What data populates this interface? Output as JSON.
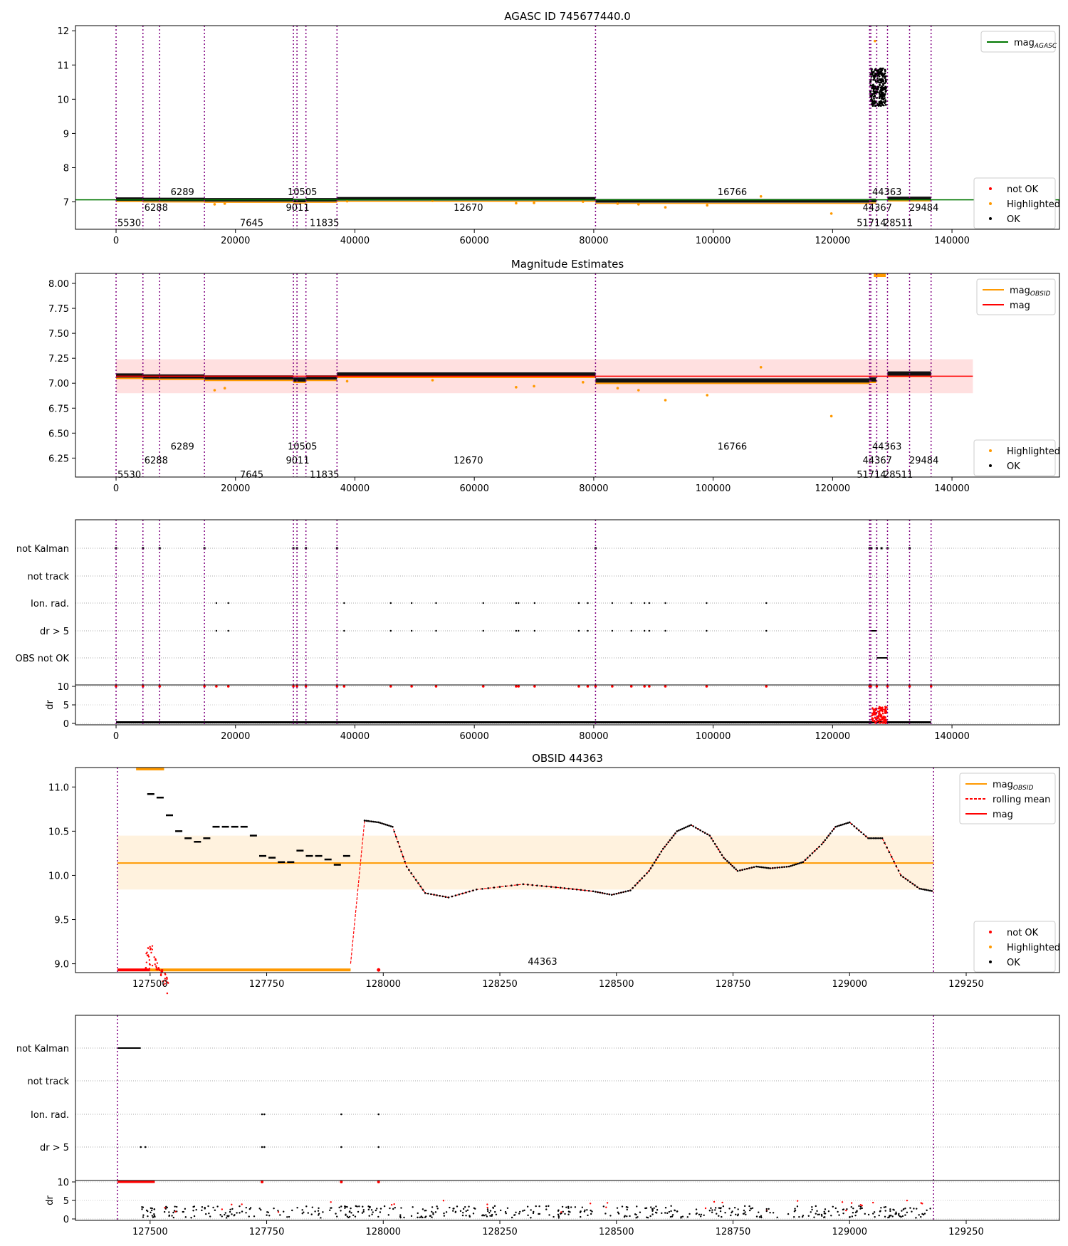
{
  "chart_data": [
    {
      "type": "scatter",
      "title": "AGASC ID 745677440.0",
      "xlim": [
        -6800,
        158000
      ],
      "ylim": [
        6.2,
        12.15
      ],
      "xticks": [
        0,
        20000,
        40000,
        60000,
        80000,
        100000,
        120000,
        140000
      ],
      "yticks": [
        7,
        8,
        9,
        10,
        11,
        12
      ],
      "obs_boundaries": [
        0,
        4500,
        7300,
        14800,
        29700,
        30300,
        31800,
        37000,
        80300,
        126200,
        126400,
        127400,
        129200,
        132900,
        136500
      ],
      "obs_labels": [
        {
          "text": "5530",
          "x": 0,
          "y": 6.4
        },
        {
          "text": "6288",
          "x": 4500,
          "y": 6.85
        },
        {
          "text": "6289",
          "x": 8900,
          "y": 7.3
        },
        {
          "text": "7645",
          "x": 20500,
          "y": 6.4
        },
        {
          "text": "10505",
          "x": 28500,
          "y": 7.3
        },
        {
          "text": "9011",
          "x": 28200,
          "y": 6.85
        },
        {
          "text": "11835",
          "x": 32200,
          "y": 6.4
        },
        {
          "text": "12670",
          "x": 56300,
          "y": 6.85
        },
        {
          "text": "16766",
          "x": 100500,
          "y": 7.3
        },
        {
          "text": "44363",
          "x": 126400,
          "y": 7.3
        },
        {
          "text": "44367",
          "x": 124800,
          "y": 6.85
        },
        {
          "text": "51714",
          "x": 123800,
          "y": 6.4
        },
        {
          "text": "28511",
          "x": 128300,
          "y": 6.4
        },
        {
          "text": "29484",
          "x": 132600,
          "y": 6.85
        }
      ],
      "segments": [
        {
          "x0": 0,
          "x1": 4500,
          "mag": 7.07
        },
        {
          "x0": 4500,
          "x1": 7300,
          "mag": 7.06
        },
        {
          "x0": 7300,
          "x1": 14800,
          "mag": 7.06
        },
        {
          "x0": 14800,
          "x1": 29700,
          "mag": 7.05
        },
        {
          "x0": 29700,
          "x1": 31800,
          "mag": 7.03
        },
        {
          "x0": 31800,
          "x1": 37000,
          "mag": 7.05
        },
        {
          "x0": 37000,
          "x1": 80300,
          "mag": 7.08
        },
        {
          "x0": 80300,
          "x1": 126200,
          "mag": 7.02
        },
        {
          "x0": 126200,
          "x1": 127300,
          "mag": 7.03
        },
        {
          "x0": 129200,
          "x1": 136500,
          "mag": 7.09
        }
      ],
      "highlighted_points": [
        [
          16500,
          6.93
        ],
        [
          18200,
          6.95
        ],
        [
          38700,
          7.02
        ],
        [
          53000,
          7.03
        ],
        [
          67000,
          6.96
        ],
        [
          70000,
          6.97
        ],
        [
          78200,
          7.01
        ],
        [
          84000,
          6.95
        ],
        [
          87500,
          6.93
        ],
        [
          92000,
          6.84
        ],
        [
          99000,
          6.9
        ],
        [
          108000,
          7.16
        ],
        [
          119800,
          6.66
        ],
        [
          127100,
          11.7
        ]
      ],
      "agasc_mag": 7.06,
      "legend_top": [
        "mag_AGASC"
      ],
      "legend_bottom": [
        "not OK",
        "Highlighted",
        "OK"
      ]
    },
    {
      "type": "scatter",
      "title": "Magnitude Estimates",
      "xlim": [
        -6800,
        158000
      ],
      "ylim": [
        6.06,
        8.1
      ],
      "xticks": [
        0,
        20000,
        40000,
        60000,
        80000,
        100000,
        120000,
        140000
      ],
      "yticks": [
        6.25,
        6.5,
        6.75,
        7.0,
        7.25,
        7.5,
        7.75,
        8.0
      ],
      "mag": 7.07,
      "mag_band": [
        6.9,
        7.24
      ],
      "highlighted_points": [
        [
          16500,
          6.93
        ],
        [
          18200,
          6.95
        ],
        [
          38700,
          7.02
        ],
        [
          53000,
          7.03
        ],
        [
          67000,
          6.96
        ],
        [
          70000,
          6.97
        ],
        [
          78200,
          7.01
        ],
        [
          84000,
          6.95
        ],
        [
          87500,
          6.93
        ],
        [
          92000,
          6.83
        ],
        [
          99000,
          6.88
        ],
        [
          108000,
          7.16
        ],
        [
          119800,
          6.67
        ]
      ],
      "legend_top": [
        "mag_OBSID",
        "mag"
      ],
      "legend_bottom": [
        "Highlighted",
        "OK"
      ]
    },
    {
      "type": "scatter",
      "categories": [
        "not Kalman",
        "not track",
        "Ion. rad.",
        "dr > 5",
        "OBS not OK"
      ],
      "xlim": [
        -6800,
        158000
      ],
      "xticks": [
        0,
        20000,
        40000,
        60000,
        80000,
        100000,
        120000,
        140000
      ],
      "dr_ylabel": "dr",
      "dr_yticks": [
        0,
        5,
        10
      ],
      "not_kalman_x": [
        0,
        4500,
        7300,
        14800,
        29700,
        30300,
        31800,
        37000,
        80300,
        126200,
        126500,
        127400,
        128200,
        129200,
        132900
      ],
      "ion_rad_x": [
        16800,
        18800,
        38200,
        46000,
        49500,
        53600,
        61500,
        67000,
        67400,
        70100,
        77500,
        79000,
        83100,
        86300,
        88500,
        89300,
        92000,
        98900,
        108900
      ],
      "obs_not_ok_range": [
        127400,
        129200
      ]
    },
    {
      "type": "line",
      "title": "OBSID 44363",
      "xlim": [
        127340,
        129450
      ],
      "ylim": [
        8.9,
        11.22
      ],
      "xticks": [
        127500,
        127750,
        128000,
        128250,
        128500,
        128750,
        129000,
        129250
      ],
      "yticks": [
        9.0,
        9.5,
        10.0,
        10.5,
        11.0
      ],
      "mag_obsid": 10.14,
      "mag_band": [
        9.84,
        10.45
      ],
      "obsid_label": {
        "text": "44363",
        "x": 128310,
        "y": 8.99
      },
      "rolling_mean_x": [
        127930,
        127960,
        127990,
        128020,
        128050,
        128090,
        128140,
        128200,
        128300,
        128380,
        128450,
        128490,
        128530,
        128570,
        128600,
        128630,
        128660,
        128700,
        128730,
        128760,
        128800,
        128830,
        128870,
        128900,
        128940,
        128970,
        129000,
        129040,
        129070,
        129110,
        129150,
        129180
      ],
      "rolling_mean_y": [
        9.0,
        10.62,
        10.6,
        10.55,
        10.1,
        9.8,
        9.75,
        9.84,
        9.9,
        9.86,
        9.82,
        9.78,
        9.83,
        10.05,
        10.3,
        10.5,
        10.57,
        10.45,
        10.2,
        10.05,
        10.1,
        10.08,
        10.1,
        10.15,
        10.35,
        10.55,
        10.6,
        10.42,
        10.42,
        10.0,
        9.85,
        9.82
      ],
      "ok_points_x": [
        127500,
        127520,
        127540,
        127560,
        127580,
        127600,
        127620,
        127640,
        127660,
        127680,
        127700,
        127720,
        127740,
        127760,
        127780,
        127800,
        127820,
        127840,
        127860,
        127880,
        127900,
        127920
      ],
      "ok_points_y": [
        10.92,
        10.88,
        10.68,
        10.5,
        10.42,
        10.38,
        10.42,
        10.55,
        10.55,
        10.55,
        10.55,
        10.45,
        10.22,
        10.2,
        10.15,
        10.15,
        10.28,
        10.22,
        10.22,
        10.18,
        10.12,
        10.22
      ],
      "legend_top": [
        "mag_OBSID",
        "rolling mean",
        "mag"
      ],
      "legend_bottom": [
        "not OK",
        "Highlighted",
        "OK"
      ]
    },
    {
      "type": "scatter",
      "categories": [
        "not Kalman",
        "not track",
        "Ion. rad.",
        "dr > 5"
      ],
      "xlim": [
        127340,
        129450
      ],
      "xticks": [
        127500,
        127750,
        128000,
        128250,
        128500,
        128750,
        129000,
        129250
      ],
      "dr_ylabel": "dr",
      "dr_yticks": [
        0,
        5,
        10
      ],
      "not_kalman_range": [
        127430,
        127480
      ],
      "ion_rad_x": [
        127740,
        127745,
        127910,
        127990
      ],
      "dr5_x": [
        127480,
        127490,
        127740,
        127745,
        127910,
        127990
      ]
    }
  ]
}
